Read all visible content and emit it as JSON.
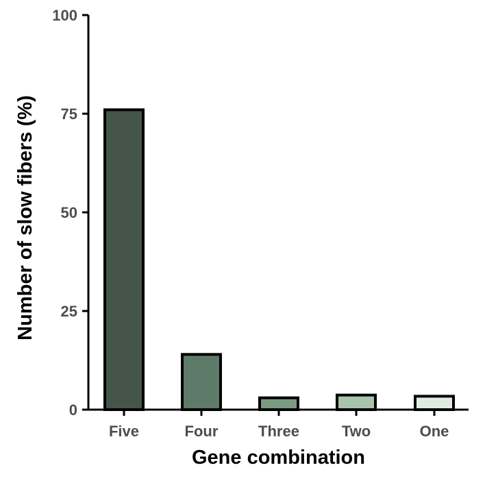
{
  "chart_data": {
    "type": "bar",
    "xlabel": "Gene combination",
    "ylabel": "Number of slow fibers (%)",
    "categories": [
      "Five",
      "Four",
      "Three",
      "Two",
      "One"
    ],
    "values": [
      76,
      14,
      3,
      3.7,
      3.4
    ],
    "ylim": [
      0,
      100
    ],
    "yticks": [
      "0",
      "25",
      "50",
      "75",
      "100"
    ],
    "bar_colors": [
      "#45554a",
      "#5e7a69",
      "#7a9a82",
      "#a8c3ac",
      "#e0ebe2"
    ],
    "grid": false,
    "legend": "none"
  }
}
